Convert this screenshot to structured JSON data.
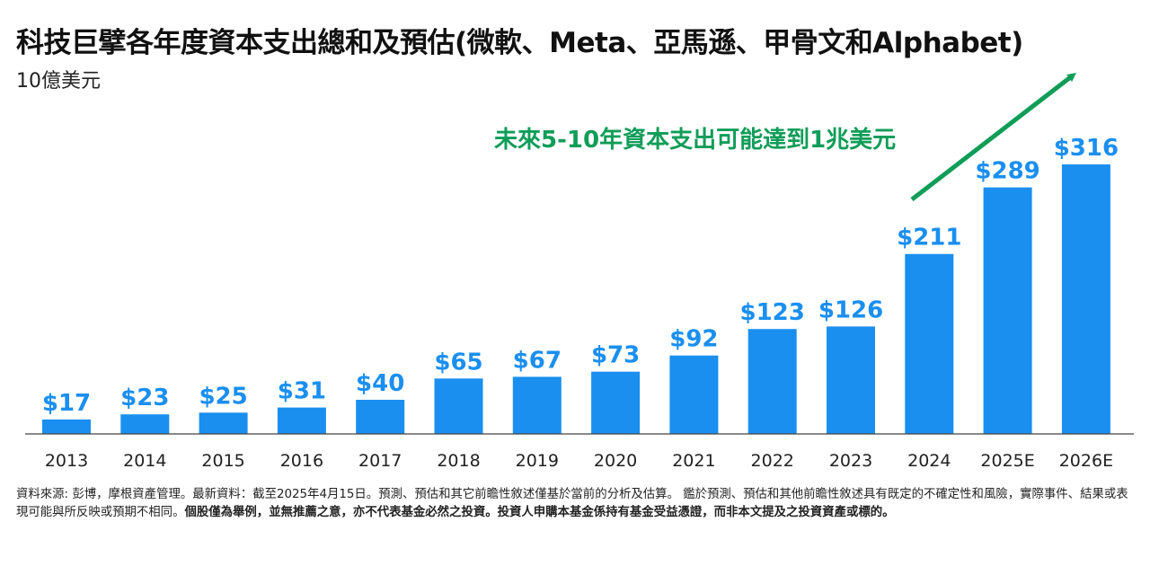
{
  "title": "科技巨擘各年度資本支出總和及預估(微軟、Meta、亞馬遜、甲骨文和Alphabet)",
  "subtitle": "10億美元",
  "annotation": "未來5-10年資本支出可能達到1兆美元",
  "colors": {
    "bar": "#1a8ff0",
    "label": "#1a8ff0",
    "annotation": "#0f9d58",
    "axis": "#444444",
    "text": "#222222"
  },
  "chart_data": {
    "type": "bar",
    "title": "科技巨擘各年度資本支出總和及預估(微軟、Meta、亞馬遜、甲骨文和Alphabet)",
    "ylabel": "10億美元",
    "xlabel": "",
    "categories": [
      "2013",
      "2014",
      "2015",
      "2016",
      "2017",
      "2018",
      "2019",
      "2020",
      "2021",
      "2022",
      "2023",
      "2024",
      "2025E",
      "2026E"
    ],
    "values": [
      17,
      23,
      25,
      31,
      40,
      65,
      67,
      73,
      92,
      123,
      126,
      211,
      289,
      316
    ],
    "value_labels": [
      "$17",
      "$23",
      "$25",
      "$31",
      "$40",
      "$65",
      "$67",
      "$73",
      "$92",
      "$123",
      "$126",
      "$211",
      "$289",
      "$316"
    ],
    "ylim": [
      0,
      316
    ],
    "grid": false,
    "legend": "none",
    "annotations": [
      "未來5-10年資本支出可能達到1兆美元"
    ]
  },
  "footnote": {
    "regular": "資料來源: 彭博，摩根資產管理。最新資料：截至2025年4月15日。預測、預估和其它前瞻性敘述僅基於當前的分析及估算。 鑑於預測、預估和其他前瞻性敘述具有既定的不確定性和風險，實際事件、結果或表現可能與所反映或預期不相同。",
    "bold": "個股僅為舉例，並無推薦之意，亦不代表基金必然之投資。投資人申購本基金係持有基金受益憑證，而非本文提及之投資資產或標的。"
  }
}
